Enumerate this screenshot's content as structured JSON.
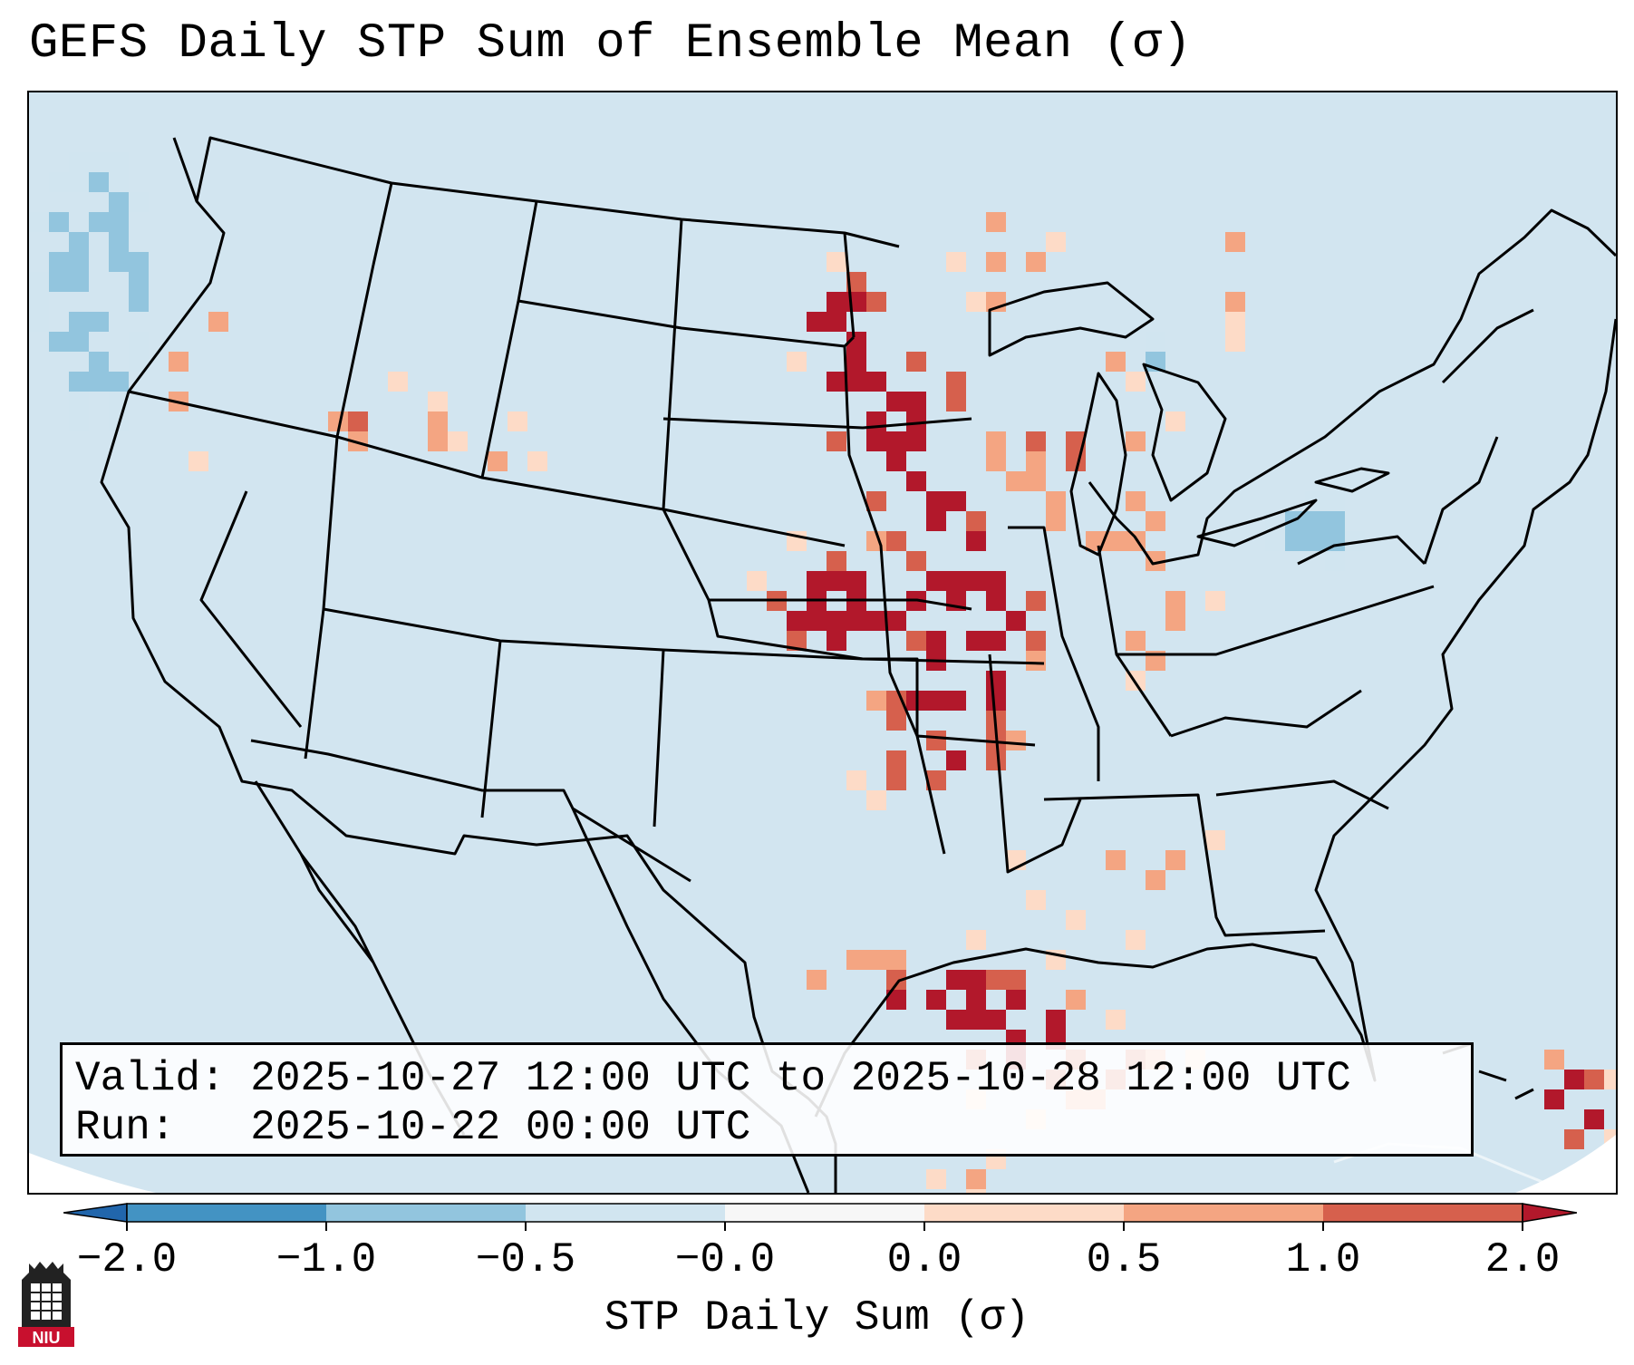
{
  "title": "GEFS Daily STP Sum of Ensemble Mean (σ)",
  "info": {
    "valid_line": "Valid: 2025-10-27 12:00 UTC to 2025-10-28 12:00 UTC",
    "run_line": "Run:   2025-10-22 00:00 UTC"
  },
  "colorbar": {
    "label": "STP Daily Sum (σ)",
    "ticks": [
      "−2.0",
      "−1.0",
      "−0.5",
      "−0.0",
      "0.0",
      "0.5",
      "1.0",
      "2.0"
    ],
    "bins": [
      {
        "range": "< -2.0",
        "color": "#2166ac"
      },
      {
        "range": "-2.0 to -1.0",
        "color": "#4393c3"
      },
      {
        "range": "-1.0 to -0.5",
        "color": "#92c5de"
      },
      {
        "range": "-0.5 to -0.0",
        "color": "#d1e5f0"
      },
      {
        "range": "-0.0 to 0.0",
        "color": "#f7f7f7"
      },
      {
        "range": "0.0 to 0.5",
        "color": "#fddbc7"
      },
      {
        "range": "0.5 to 1.0",
        "color": "#f4a582"
      },
      {
        "range": "1.0 to 2.0",
        "color": "#d6604d"
      },
      {
        "range": "> 2.0",
        "color": "#b2182b"
      }
    ],
    "extend": "both"
  },
  "map": {
    "background_color": "#d2e5f0",
    "projection": "Lambert Conformal (CONUS)",
    "regions": [
      {
        "name": "Pacific Northwest",
        "level": "0.0 to 1.0"
      },
      {
        "name": "Idaho / Montana",
        "level": "0.0 to 2.0"
      },
      {
        "name": "Northern and Central Plains",
        "level": "1.0 to > 2.0"
      },
      {
        "name": "Upper Midwest and Great Lakes",
        "level": "0.0 to 1.0"
      },
      {
        "name": "Mid-Mississippi Valley",
        "level": "1.0 to > 2.0"
      },
      {
        "name": "Texas and Louisiana Gulf Coast",
        "level": "0.5 to > 2.0"
      },
      {
        "name": "Southeast",
        "level": "0.0 to 0.5"
      },
      {
        "name": "Caribbean",
        "level": "1.0 to > 2.0"
      },
      {
        "name": "Pacific offshore",
        "level": "-1.0 to -0.5"
      }
    ]
  },
  "logo": {
    "text": "NIU"
  }
}
